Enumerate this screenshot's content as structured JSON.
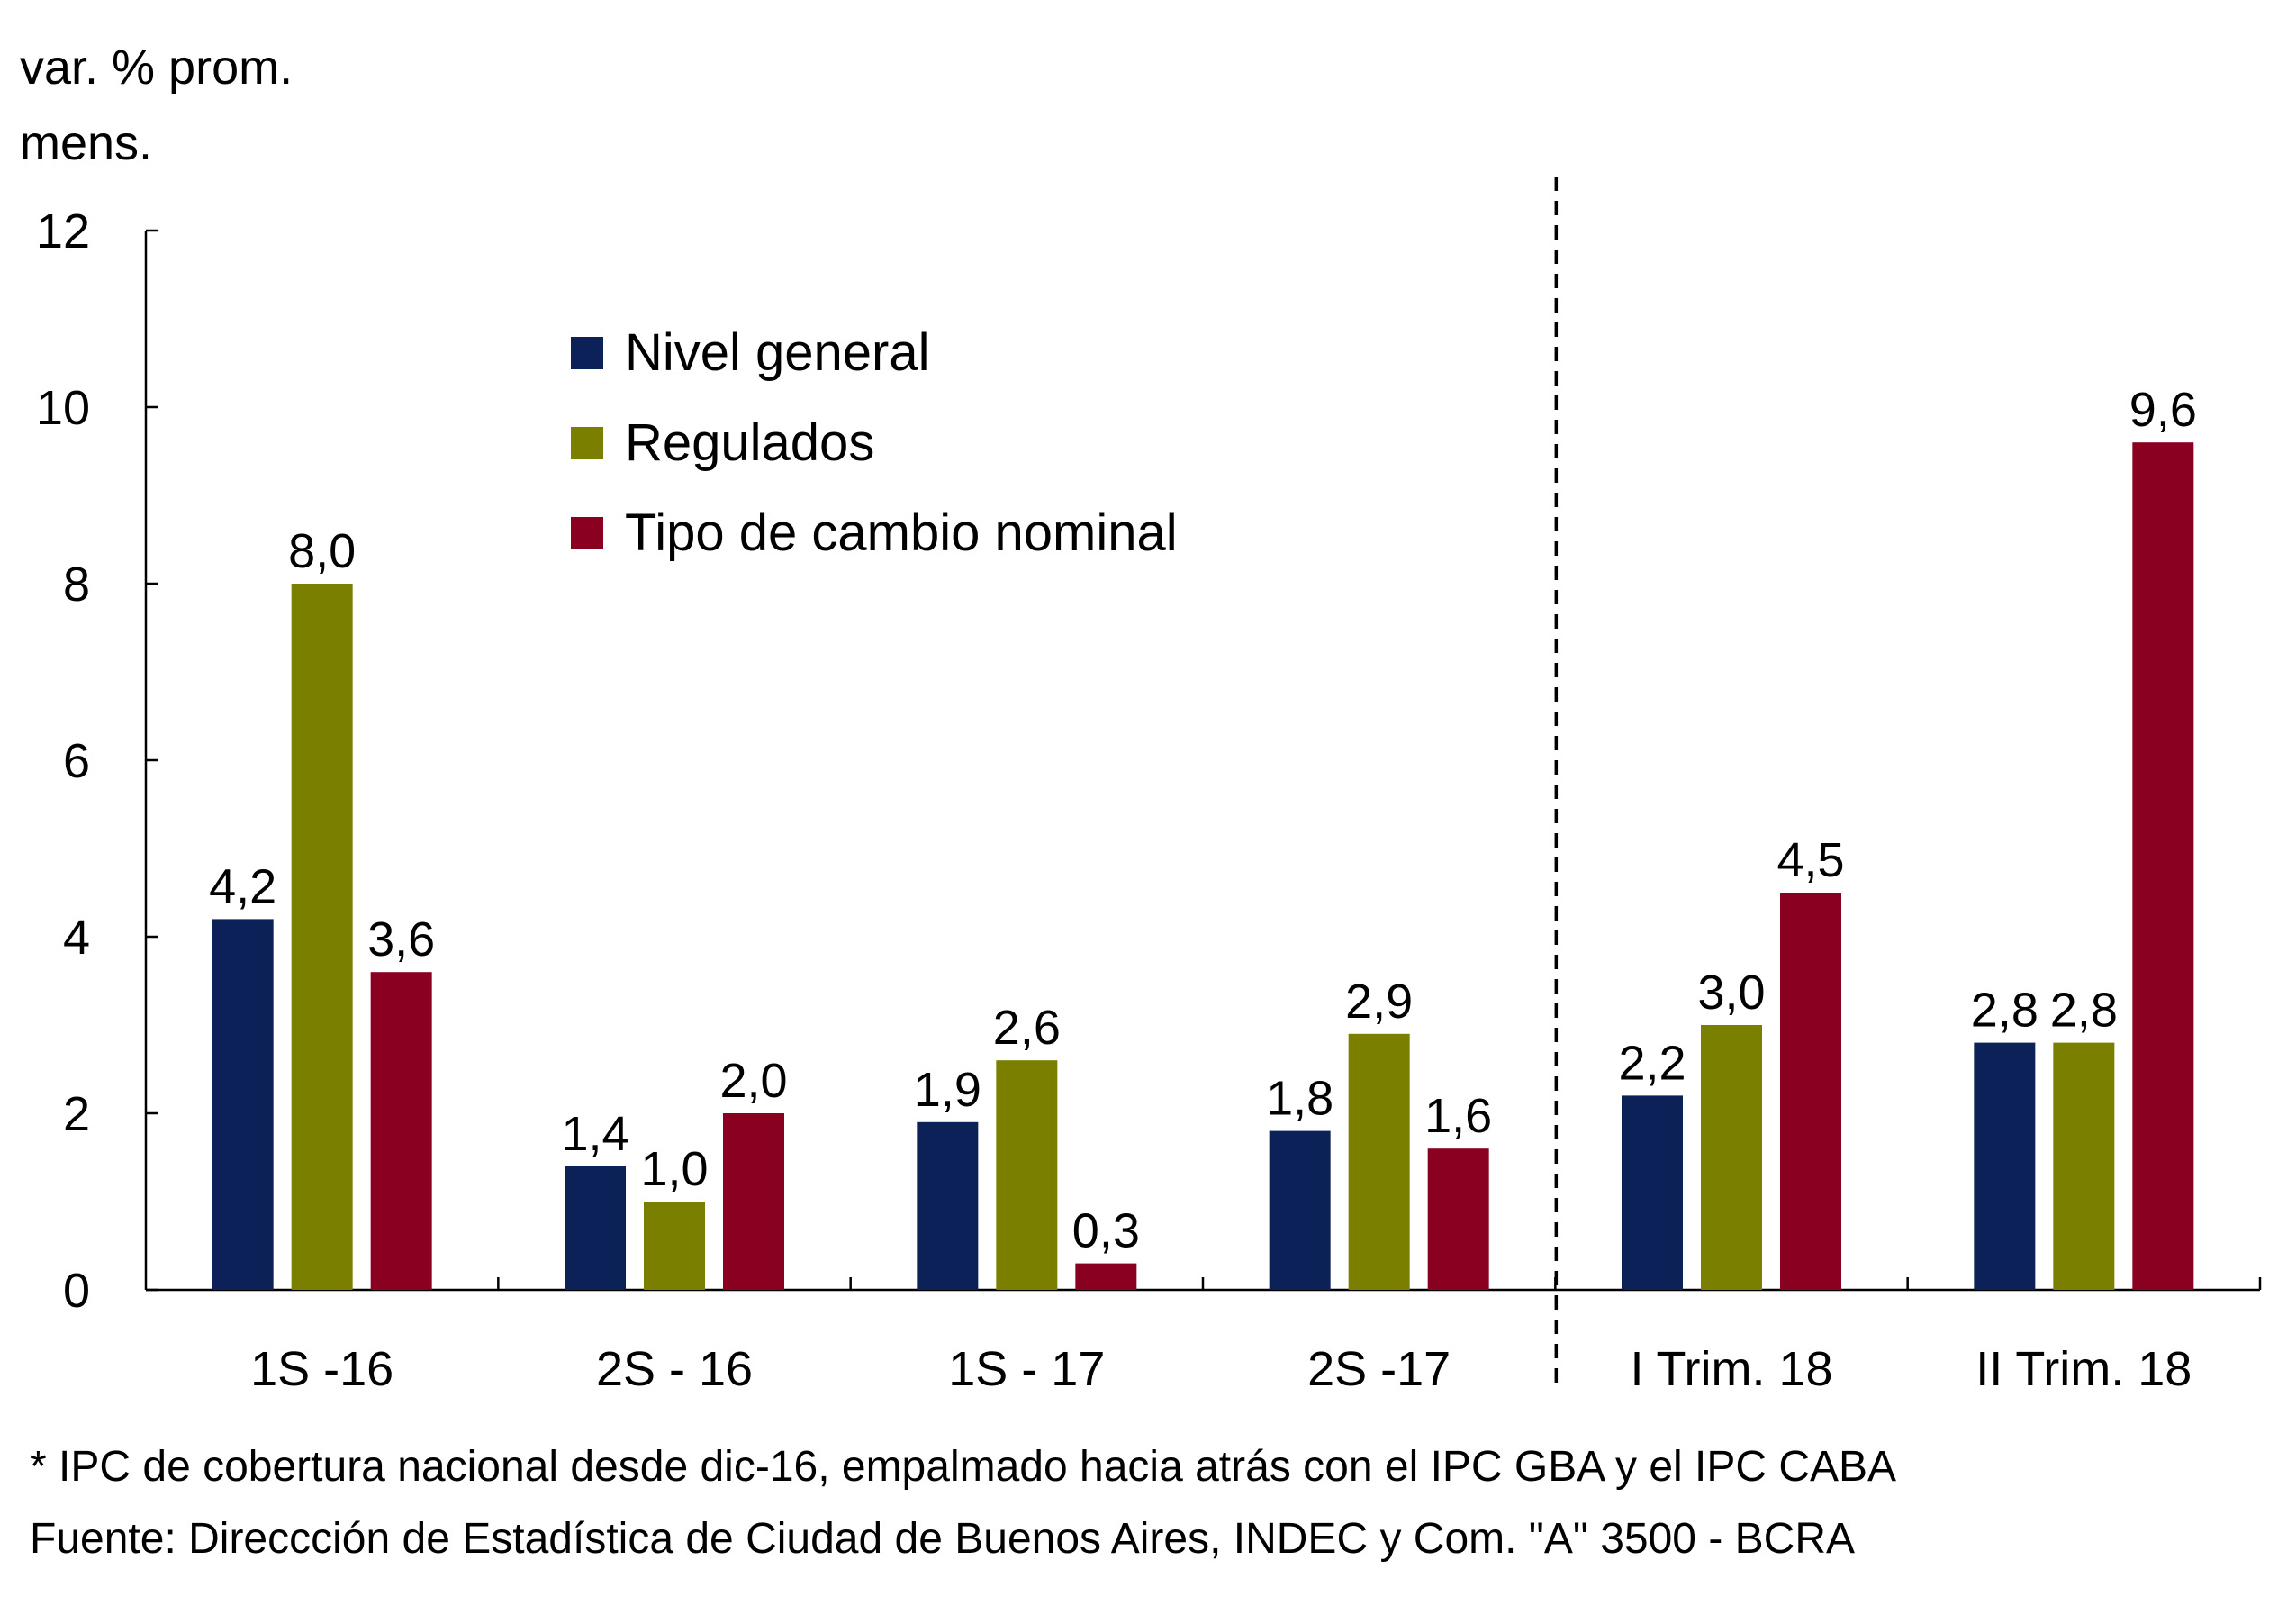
{
  "chart_data": {
    "type": "bar",
    "ylabel_lines": [
      "var. % prom.",
      "mens."
    ],
    "ylim": [
      0,
      12
    ],
    "yticks": [
      0,
      2,
      4,
      6,
      8,
      10,
      12
    ],
    "categories": [
      "1S -16",
      "2S - 16",
      "1S - 17",
      "2S -17",
      "I Trim. 18",
      "II Trim. 18"
    ],
    "series": [
      {
        "name": "Nivel general",
        "color": "#0b2157",
        "values": [
          4.2,
          1.4,
          1.9,
          1.8,
          2.2,
          2.8
        ],
        "labels": [
          "4,2",
          "1,4",
          "1,9",
          "1,8",
          "2,2",
          "2,8"
        ]
      },
      {
        "name": "Regulados",
        "color": "#7a7f00",
        "values": [
          8.0,
          1.0,
          2.6,
          2.9,
          3.0,
          2.8
        ],
        "labels": [
          "8,0",
          "1,0",
          "2,6",
          "2,9",
          "3,0",
          "2,8"
        ]
      },
      {
        "name": "Tipo de cambio nominal",
        "color": "#8a0020",
        "values": [
          3.6,
          2.0,
          0.3,
          1.6,
          4.5,
          9.6
        ],
        "labels": [
          "3,6",
          "2,0",
          "0,3",
          "1,6",
          "4,5",
          "9,6"
        ]
      }
    ],
    "separator_after_category": "2S -17",
    "legend_position": "top-left",
    "grid": false
  },
  "footnotes": {
    "note": "* IPC de cobertura nacional desde dic-16, empalmado hacia atrás con el IPC GBA y el IPC CABA",
    "source": "Fuente: Direccción de Estadística de Ciudad de Buenos Aires, INDEC y Com. \"A\" 3500 - BCRA"
  }
}
